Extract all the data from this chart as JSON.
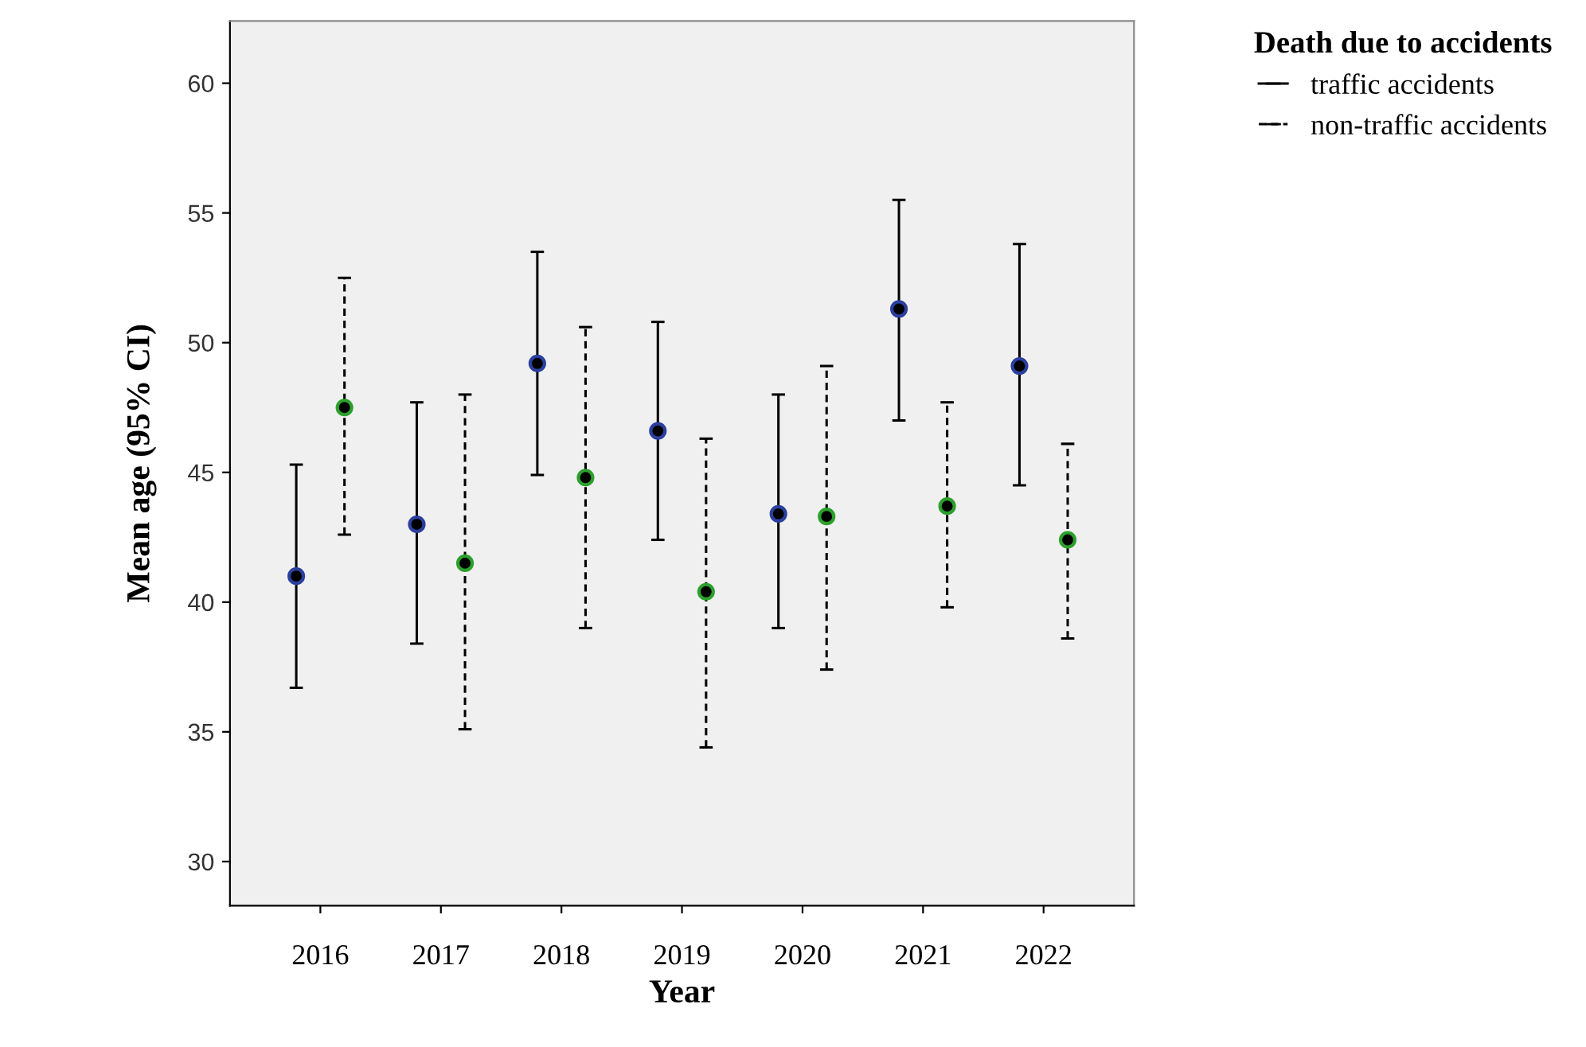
{
  "chart_data": {
    "type": "scatter",
    "xlabel": "Year",
    "ylabel": "Mean age (95% CI)",
    "legend_title": "Death due to accidents",
    "categories": [
      "2016",
      "2017",
      "2018",
      "2019",
      "2020",
      "2021",
      "2022"
    ],
    "series": [
      {
        "name": "traffic accidents",
        "color": "#2b3f9e",
        "line_style": "solid",
        "values": [
          41.0,
          43.0,
          49.2,
          46.6,
          43.4,
          51.3,
          49.1
        ],
        "errors": [
          [
            36.7,
            45.3
          ],
          [
            38.4,
            47.7
          ],
          [
            44.9,
            53.5
          ],
          [
            42.4,
            50.8
          ],
          [
            39.0,
            48.0
          ],
          [
            47.0,
            55.5
          ],
          [
            44.5,
            53.8
          ]
        ]
      },
      {
        "name": "non-traffic accidents",
        "color": "#2ca02c",
        "line_style": "dashed",
        "values": [
          47.5,
          41.5,
          44.8,
          40.4,
          43.3,
          43.7,
          42.4
        ],
        "errors": [
          [
            42.6,
            52.5
          ],
          [
            35.1,
            48.0
          ],
          [
            39.0,
            50.6
          ],
          [
            34.4,
            46.3
          ],
          [
            37.4,
            49.1
          ],
          [
            39.8,
            47.7
          ],
          [
            38.6,
            46.1
          ]
        ]
      }
    ],
    "ylim": [
      28.3,
      62.4
    ],
    "yticks": [
      30,
      35,
      40,
      45,
      50,
      55,
      60
    ],
    "grid": false,
    "legend": "top right",
    "marker": "circle"
  }
}
